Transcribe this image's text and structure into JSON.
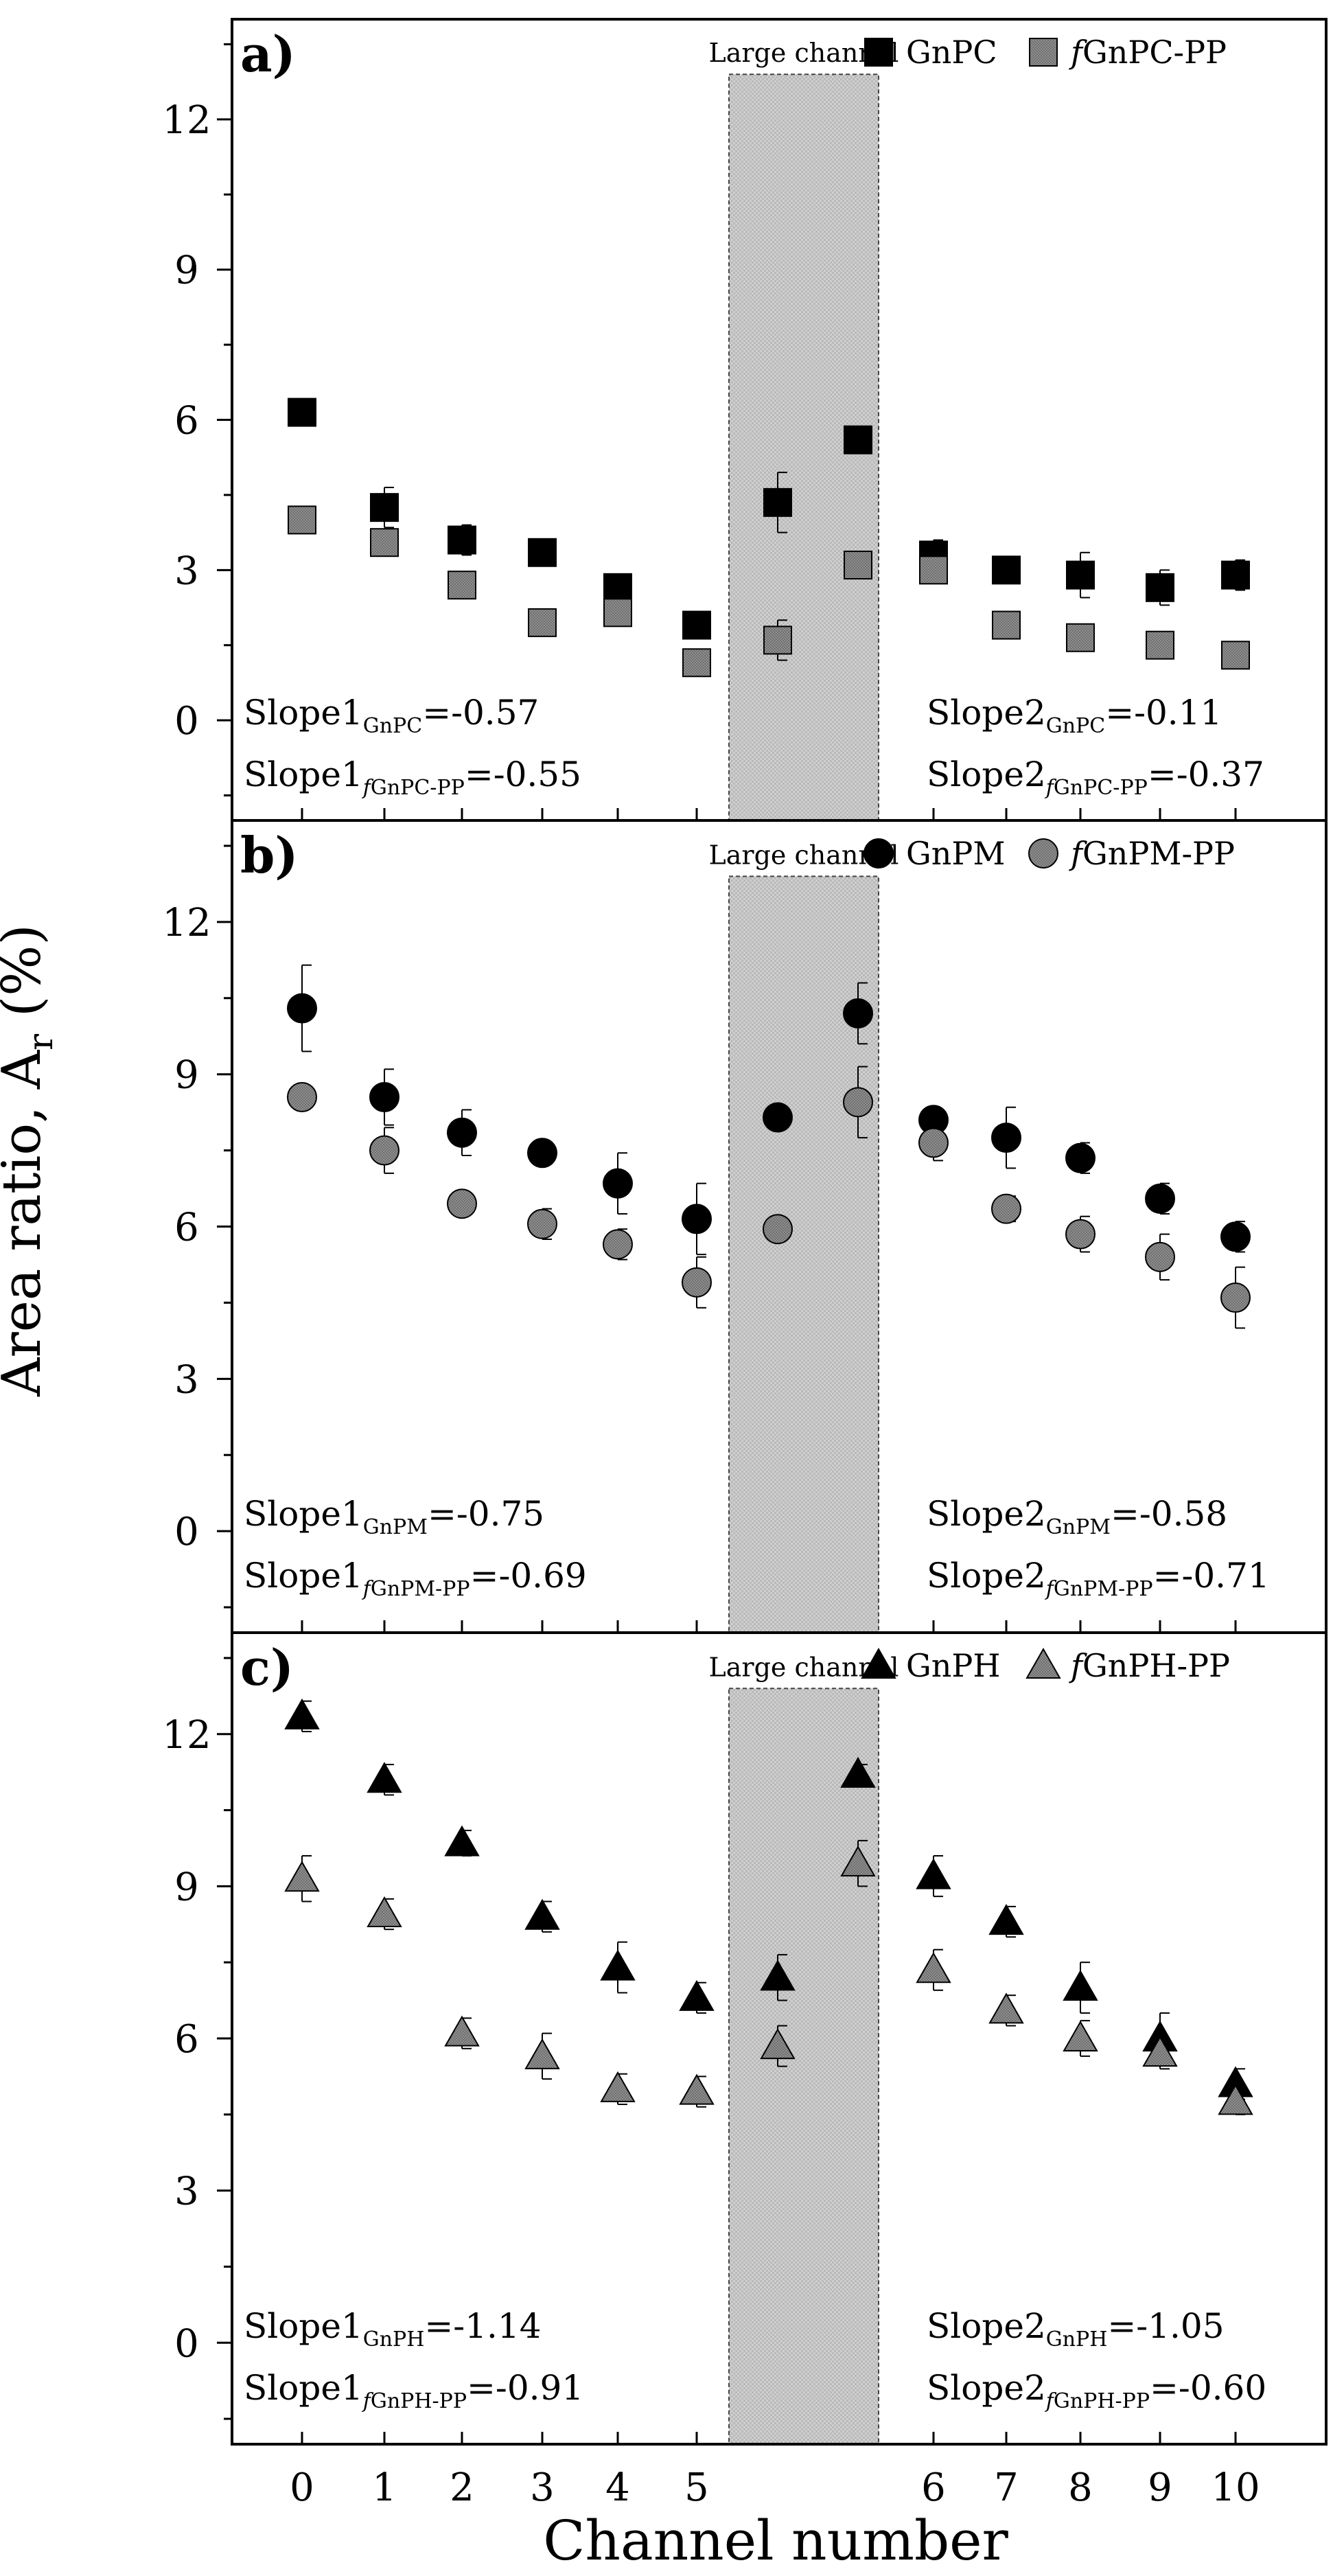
{
  "figure": {
    "ylabel": "Area ratio, A",
    "ylabel_sub": "r",
    "ylabel_unit": " (%)",
    "xlabel": "Channel number"
  },
  "chart_data": [
    {
      "type": "scatter",
      "panel": "a)",
      "ylim": [
        -2,
        14
      ],
      "yticks": [
        0,
        3,
        6,
        9,
        12
      ],
      "xticks": [
        "0",
        "1",
        "2",
        "3",
        "4",
        "5",
        "6",
        "7",
        "8",
        "9",
        "10"
      ],
      "region_label": "Large channel",
      "marker": "square",
      "series": [
        {
          "name": "GnPC",
          "name_parts": [
            {
              "t": "GnPC",
              "i": false
            }
          ],
          "color": "#000000",
          "values": [
            6.15,
            4.25,
            3.6,
            3.35,
            2.65,
            1.9,
            4.35,
            5.6,
            3.3,
            3.0,
            2.9,
            2.65,
            2.9
          ],
          "errors": [
            0,
            0.4,
            0.3,
            0,
            0,
            0,
            0.6,
            0.25,
            0.3,
            0,
            0.45,
            0.35,
            0.3
          ]
        },
        {
          "name": "fGnPC-PP",
          "name_parts": [
            {
              "t": "f",
              "i": true
            },
            {
              "t": "GnPC-PP",
              "i": false
            }
          ],
          "color": "#8a8a8a",
          "values": [
            4.0,
            3.55,
            2.7,
            1.95,
            2.15,
            1.15,
            1.6,
            3.1,
            3.0,
            1.9,
            1.65,
            1.5,
            1.3
          ],
          "errors": [
            0,
            0.25,
            0,
            0,
            0.25,
            0,
            0.4,
            0,
            0.2,
            0,
            0,
            0,
            0
          ]
        }
      ],
      "annotations": [
        {
          "main": "Slope1",
          "sub": "GnPC",
          "val": "=-0.57"
        },
        {
          "main": "Slope1",
          "sub": "fGnPC-PP",
          "val": "=-0.55"
        },
        {
          "main": "Slope2",
          "sub": "GnPC",
          "val": "=-0.11"
        },
        {
          "main": "Slope2",
          "sub": "fGnPC-PP",
          "val": "=-0.37"
        }
      ]
    },
    {
      "type": "scatter",
      "panel": "b)",
      "ylim": [
        -2,
        14
      ],
      "yticks": [
        0,
        3,
        6,
        9,
        12
      ],
      "xticks": [
        "0",
        "1",
        "2",
        "3",
        "4",
        "5",
        "6",
        "7",
        "8",
        "9",
        "10"
      ],
      "region_label": "Large channel",
      "marker": "circle",
      "series": [
        {
          "name": "GnPM",
          "name_parts": [
            {
              "t": "GnPM",
              "i": false
            }
          ],
          "color": "#000000",
          "values": [
            10.3,
            8.55,
            7.85,
            7.45,
            6.85,
            6.15,
            8.15,
            10.2,
            8.1,
            7.75,
            7.35,
            6.55,
            5.8
          ],
          "errors": [
            0.85,
            0.55,
            0.45,
            0,
            0.6,
            0.7,
            0,
            0.6,
            0,
            0.6,
            0.3,
            0.3,
            0.3
          ]
        },
        {
          "name": "fGnPM-PP",
          "name_parts": [
            {
              "t": "f",
              "i": true
            },
            {
              "t": "GnPM-PP",
              "i": false
            }
          ],
          "color": "#8a8a8a",
          "values": [
            8.55,
            7.5,
            6.45,
            6.05,
            5.65,
            4.9,
            5.95,
            8.45,
            7.65,
            6.35,
            5.85,
            5.4,
            4.6
          ],
          "errors": [
            0,
            0.45,
            0,
            0.3,
            0.3,
            0.5,
            0.2,
            0.7,
            0.35,
            0.25,
            0.35,
            0.45,
            0.6
          ]
        }
      ],
      "annotations": [
        {
          "main": "Slope1",
          "sub": "GnPM",
          "val": "=-0.75"
        },
        {
          "main": "Slope1",
          "sub": "fGnPM-PP",
          "val": "=-0.69"
        },
        {
          "main": "Slope2",
          "sub": "GnPM",
          "val": "=-0.58"
        },
        {
          "main": "Slope2",
          "sub": "fGnPM-PP",
          "val": "=-0.71"
        }
      ]
    },
    {
      "type": "scatter",
      "panel": "c)",
      "ylim": [
        -2,
        14
      ],
      "yticks": [
        0,
        3,
        6,
        9,
        12
      ],
      "xticks": [
        "0",
        "1",
        "2",
        "3",
        "4",
        "5",
        "6",
        "7",
        "8",
        "9",
        "10"
      ],
      "region_label": "Large channel",
      "marker": "triangle",
      "series": [
        {
          "name": "GnPH",
          "name_parts": [
            {
              "t": "GnPH",
              "i": false
            }
          ],
          "color": "#000000",
          "values": [
            12.35,
            11.1,
            9.85,
            8.4,
            7.4,
            6.8,
            7.2,
            11.2,
            9.2,
            8.3,
            7.0,
            6.0,
            5.1
          ],
          "errors": [
            0.3,
            0.3,
            0.25,
            0.3,
            0.5,
            0.3,
            0.45,
            0.2,
            0.4,
            0.3,
            0.5,
            0.5,
            0.3
          ]
        },
        {
          "name": "fGnPH-PP",
          "name_parts": [
            {
              "t": "f",
              "i": true
            },
            {
              "t": "GnPH-PP",
              "i": false
            }
          ],
          "color": "#8a8a8a",
          "values": [
            9.15,
            8.45,
            6.1,
            5.65,
            5.0,
            4.95,
            5.85,
            9.45,
            7.35,
            6.55,
            6.0,
            5.7,
            4.75
          ],
          "errors": [
            0.45,
            0.3,
            0.3,
            0.45,
            0.3,
            0.3,
            0.4,
            0.45,
            0.4,
            0.3,
            0.35,
            0.3,
            0.25
          ]
        }
      ],
      "annotations": [
        {
          "main": "Slope1",
          "sub": "GnPH",
          "val": "=-1.14"
        },
        {
          "main": "Slope1",
          "sub": "fGnPH-PP",
          "val": "=-0.91"
        },
        {
          "main": "Slope2",
          "sub": "GnPH",
          "val": "=-1.05"
        },
        {
          "main": "Slope2",
          "sub": "fGnPH-PP",
          "val": "=-0.60"
        }
      ]
    }
  ]
}
